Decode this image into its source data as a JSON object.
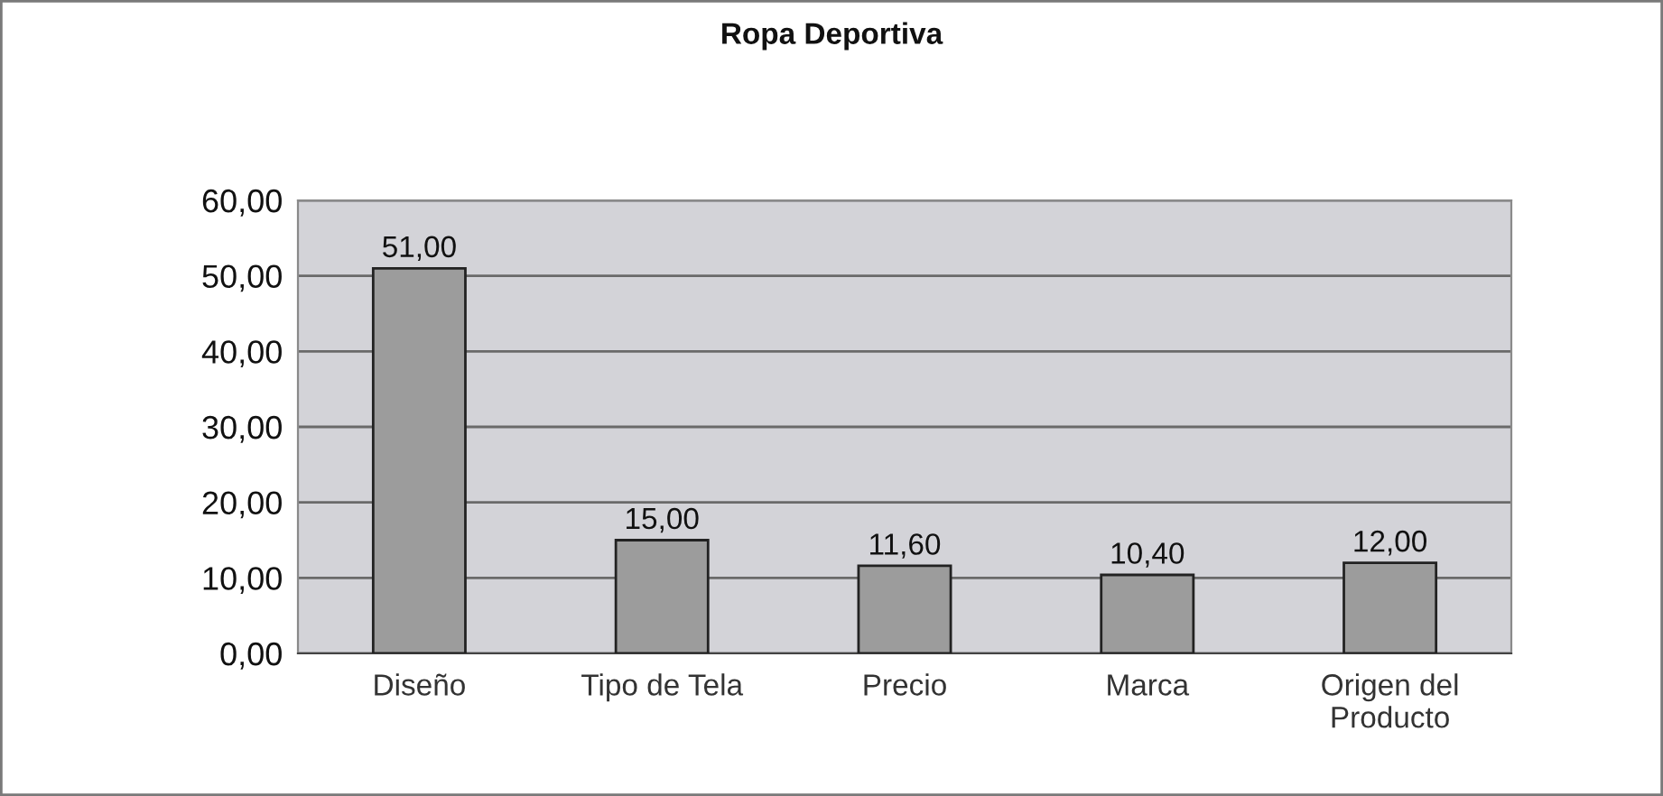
{
  "chart_data": {
    "type": "bar",
    "title": "Ropa Deportiva",
    "categories": [
      "Diseño",
      "Tipo de Tela",
      "Precio",
      "Marca",
      "Origen del\nProducto"
    ],
    "values": [
      51.0,
      15.0,
      11.6,
      10.4,
      12.0
    ],
    "color": "#9c9c9c",
    "value_labels": [
      "51,00",
      "15,00",
      "11,60",
      "10,40",
      "12,00"
    ],
    "ylim": [
      0,
      60
    ],
    "yticks": [
      {
        "value": 0,
        "label": "0,00"
      },
      {
        "value": 10,
        "label": "10,00"
      },
      {
        "value": 20,
        "label": "20,00"
      },
      {
        "value": 30,
        "label": "30,00"
      },
      {
        "value": 40,
        "label": "40,00"
      },
      {
        "value": 50,
        "label": "50,00"
      },
      {
        "value": 60,
        "label": "60,00"
      }
    ],
    "grid": "y",
    "legend": false
  }
}
